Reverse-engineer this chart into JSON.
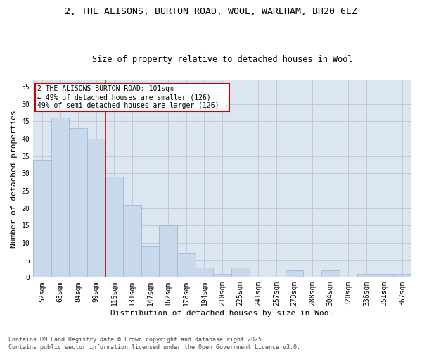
{
  "title_line1": "2, THE ALISONS, BURTON ROAD, WOOL, WAREHAM, BH20 6EZ",
  "title_line2": "Size of property relative to detached houses in Wool",
  "xlabel": "Distribution of detached houses by size in Wool",
  "ylabel": "Number of detached properties",
  "categories": [
    "52sqm",
    "68sqm",
    "84sqm",
    "99sqm",
    "115sqm",
    "131sqm",
    "147sqm",
    "162sqm",
    "178sqm",
    "194sqm",
    "210sqm",
    "225sqm",
    "241sqm",
    "257sqm",
    "273sqm",
    "288sqm",
    "304sqm",
    "320sqm",
    "336sqm",
    "351sqm",
    "367sqm"
  ],
  "values": [
    34,
    46,
    43,
    40,
    29,
    21,
    9,
    15,
    7,
    3,
    1,
    3,
    0,
    0,
    2,
    0,
    2,
    0,
    1,
    1,
    1
  ],
  "bar_color": "#c9d9ec",
  "bar_edge_color": "#a0b8d8",
  "red_line_index": 3.5,
  "annotation_text": "2 THE ALISONS BURTON ROAD: 101sqm\n← 49% of detached houses are smaller (126)\n49% of semi-detached houses are larger (126) →",
  "annotation_box_color": "#ffffff",
  "annotation_box_edge": "#cc0000",
  "ylim": [
    0,
    57
  ],
  "yticks": [
    0,
    5,
    10,
    15,
    20,
    25,
    30,
    35,
    40,
    45,
    50,
    55
  ],
  "grid_color": "#c0c8d8",
  "background_color": "#dce6f0",
  "footer_text": "Contains HM Land Registry data © Crown copyright and database right 2025.\nContains public sector information licensed under the Open Government Licence v3.0.",
  "title_fontsize": 9.5,
  "subtitle_fontsize": 8.5,
  "axis_label_fontsize": 8,
  "tick_fontsize": 7,
  "annotation_fontsize": 7
}
